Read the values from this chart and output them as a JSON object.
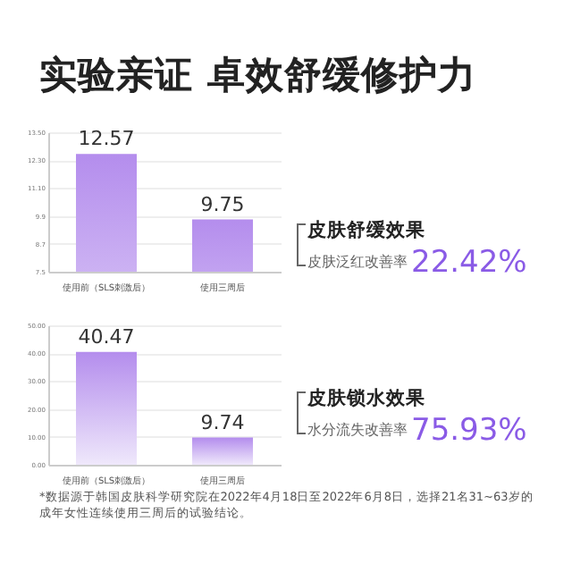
{
  "chart_data": [
    {
      "type": "bar",
      "title": "实验亲证 卓效舒缓修护力",
      "categories": [
        "使用前（SLS刺激后）",
        "使用三周后"
      ],
      "values": [
        12.57,
        9.75
      ],
      "color": "#b48ded",
      "ylim": [
        7.5,
        13.5
      ],
      "yticks": [
        {
          "value": 7.5,
          "label": "7.5"
        },
        {
          "value": 8.7,
          "label": "8.7"
        },
        {
          "value": 9.9,
          "label": "9.9"
        },
        {
          "value": 11.1,
          "label": "11.10"
        },
        {
          "value": 12.3,
          "label": "12.30"
        },
        {
          "value": 13.5,
          "label": "13.50"
        }
      ],
      "grid": "y",
      "data_labels": true,
      "annotations": [
        "皮肤舒缓效果",
        "皮肤泛红改善率",
        "22.42%"
      ]
    },
    {
      "type": "bar",
      "categories": [
        "使用前（SLS刺激后）",
        "使用三周后"
      ],
      "values": [
        40.47,
        9.74
      ],
      "color": "#b48ded",
      "ylim": [
        0,
        50
      ],
      "yticks": [
        {
          "value": 0,
          "label": "0.00"
        },
        {
          "value": 10,
          "label": "10.00"
        },
        {
          "value": 20,
          "label": "20.00"
        },
        {
          "value": 30,
          "label": "30.00"
        },
        {
          "value": 40,
          "label": "40.00"
        },
        {
          "value": 50,
          "label": "50.00"
        }
      ],
      "grid": "y",
      "data_labels": true,
      "annotations": [
        "皮肤锁水效果",
        "水分流失改善率",
        "75.93%",
        "*数据源于韩国皮肤科学研究院在2022年4月18日至2022年6月8日，选择21名31~63岁的成年女性连续使用三周后的试验结论。"
      ]
    }
  ]
}
